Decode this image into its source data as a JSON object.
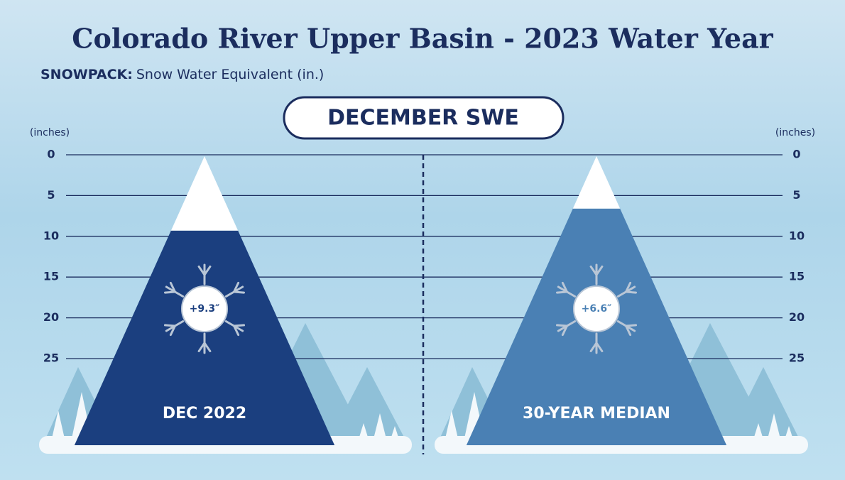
{
  "chart_data": {
    "type": "mountain",
    "title": "Colorado River Upper Basin - 2023 Water Year",
    "subtitle_label": "SNOWPACK:",
    "subtitle": "Snow Water Equivalent (in.)",
    "panel_title": "DECEMBER SWE",
    "y_label": "(inches)",
    "categories": [
      "DEC 2022",
      "30-YEAR MEDIAN"
    ],
    "values": [
      9.3,
      6.6
    ],
    "value_labels": [
      "+9.3″",
      "+6.6″"
    ],
    "colors": [
      "#1b3f7f",
      "#4a80b4"
    ],
    "ylim": [
      0,
      25
    ],
    "yticks": [
      0,
      5,
      10,
      15,
      20,
      25
    ],
    "inverted": true,
    "grid": true
  }
}
